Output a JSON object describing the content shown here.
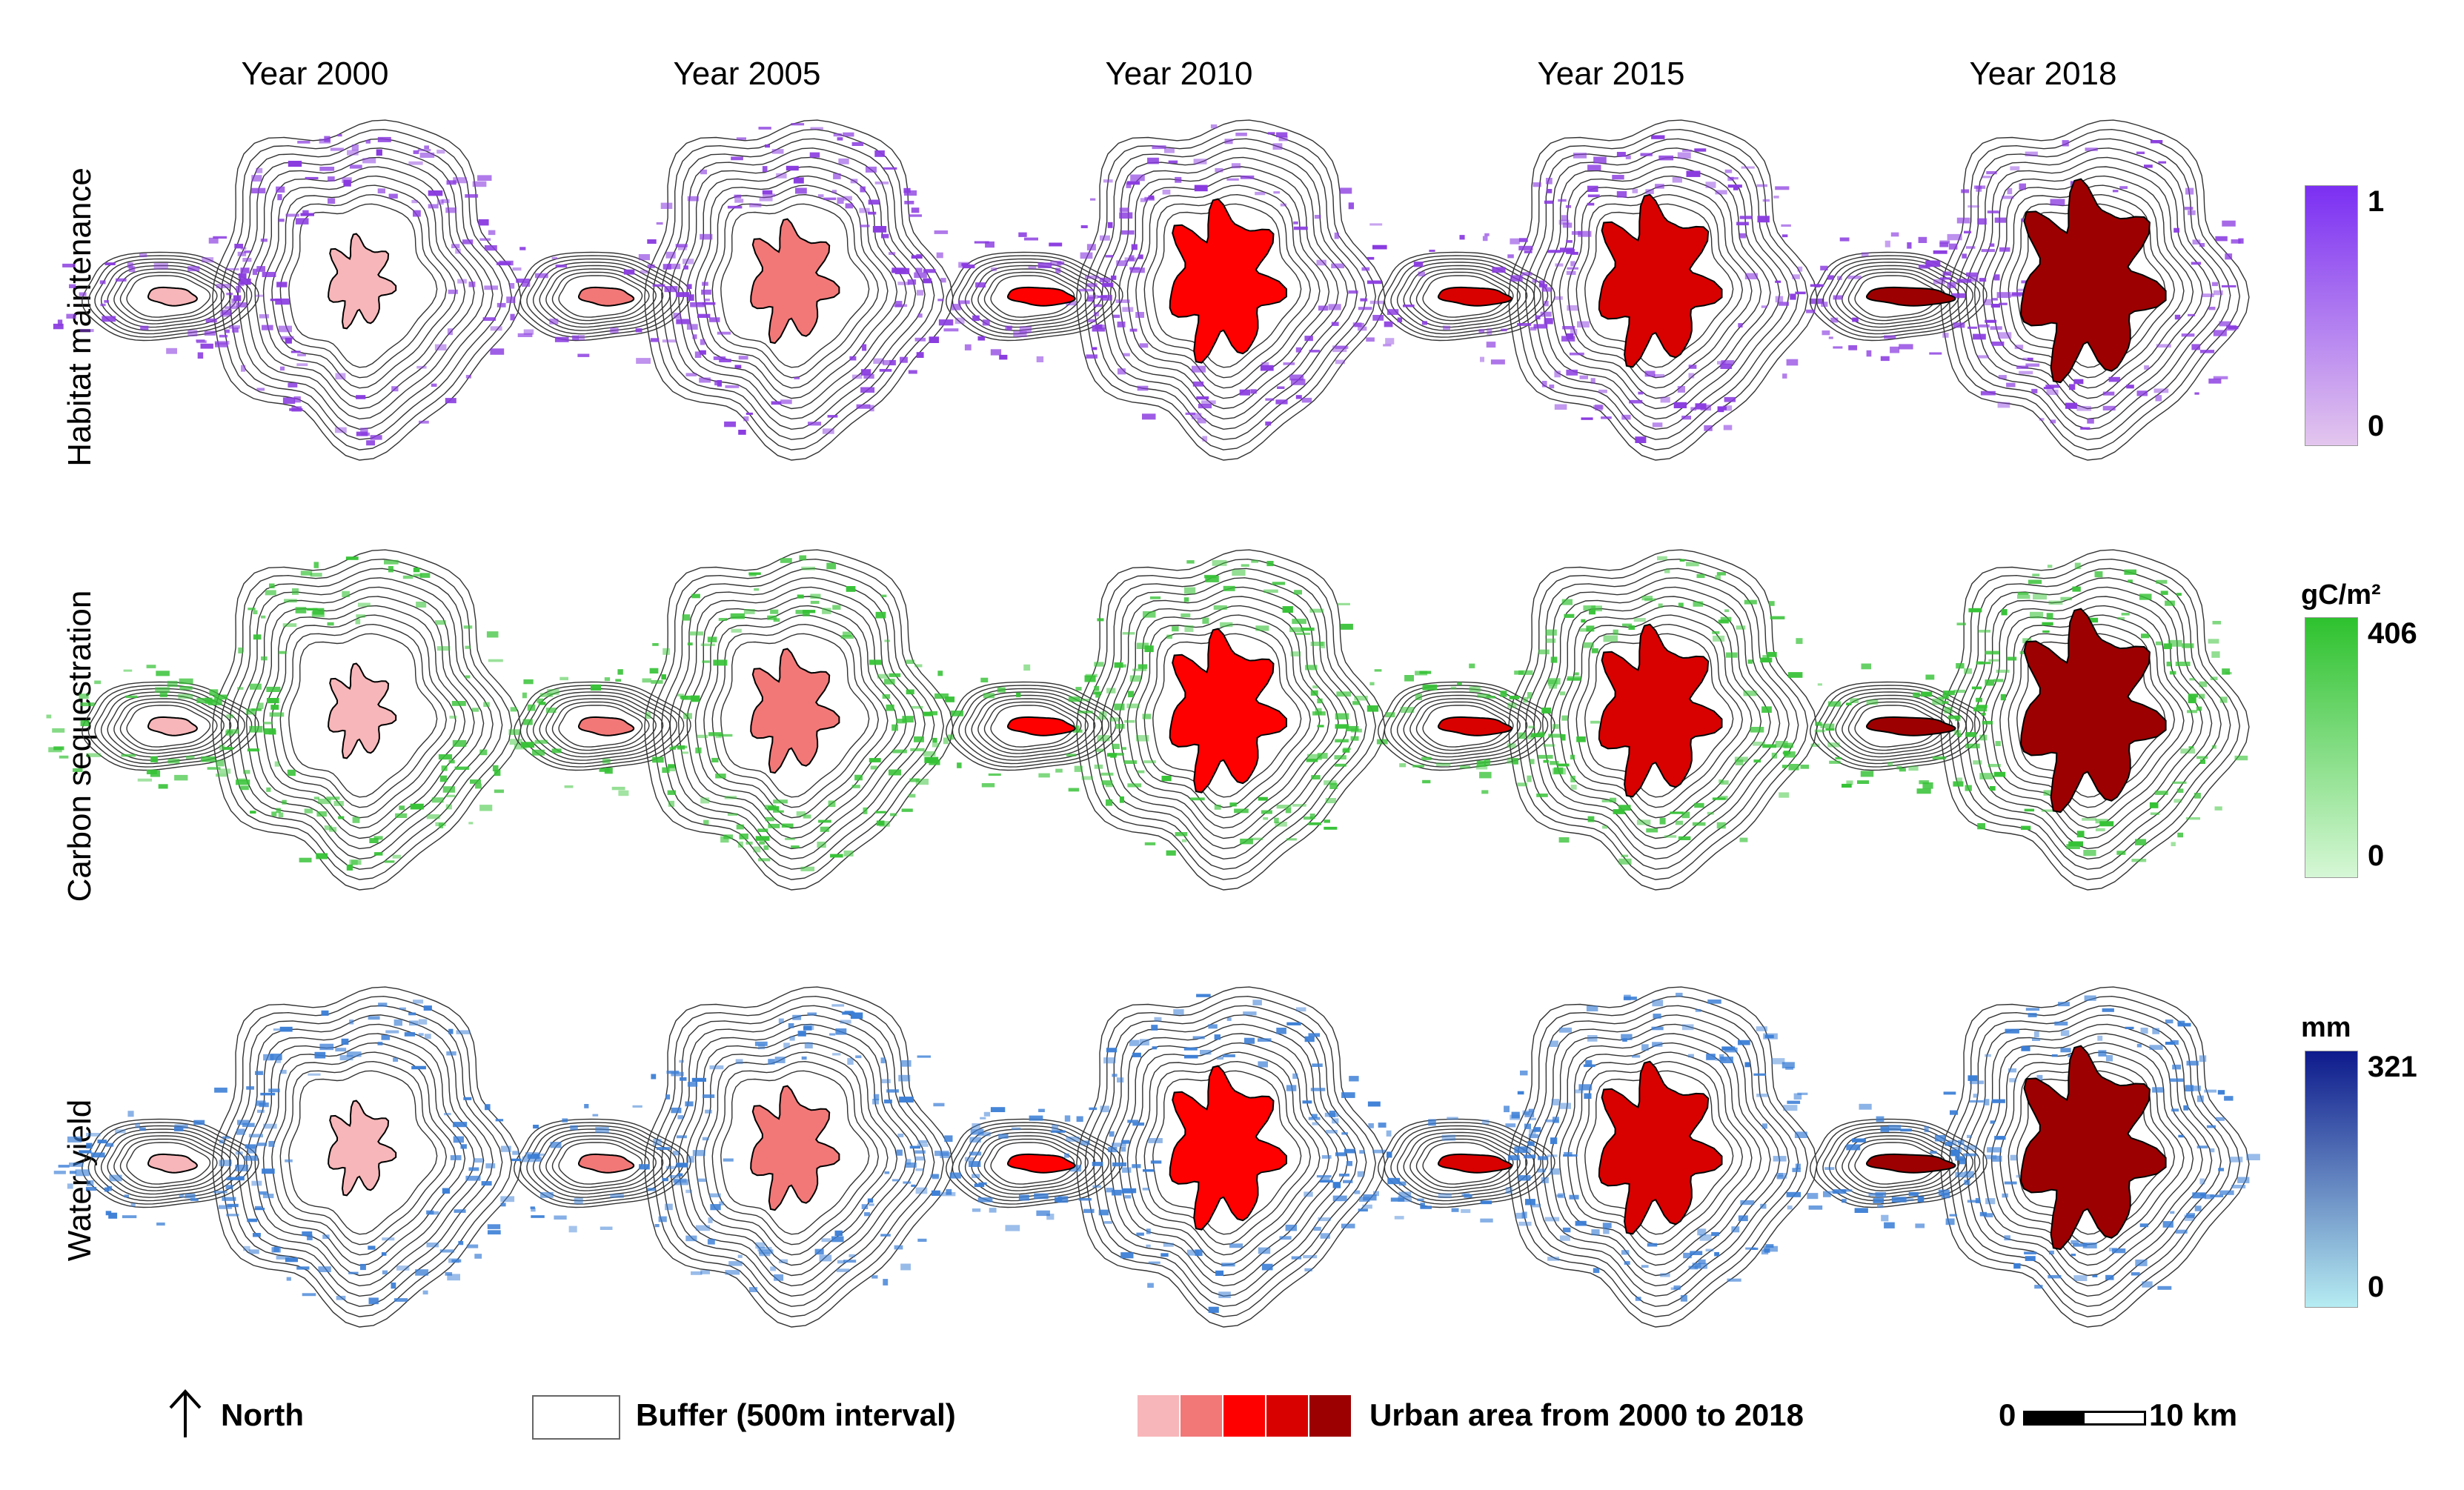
{
  "years": [
    "Year 2000",
    "Year 2005",
    "Year 2010",
    "Year 2015",
    "Year 2018"
  ],
  "rows": [
    {
      "label": "Habitat maintenance",
      "unit": "",
      "max": "1",
      "min": "0",
      "color_top": "#7b2ff2",
      "color_bottom": "#e3c6ee",
      "dot_color": "#8a3be0"
    },
    {
      "label": "Carbon sequestration",
      "unit": "gC/m²",
      "max": "406",
      "min": "0",
      "color_top": "#2ec22e",
      "color_bottom": "#d6f7d6",
      "dot_color": "#36c236"
    },
    {
      "label": "Water yield",
      "unit": "mm",
      "max": "321",
      "min": "0",
      "color_top": "#0d1a8c",
      "color_bottom": "#b6ecf2",
      "dot_color": "#3b7ed6"
    }
  ],
  "urban_colors": [
    "#f7b6b9",
    "#f27878",
    "#ff0000",
    "#d90000",
    "#9c0000"
  ],
  "legend": {
    "north": "North",
    "buffer": "Buffer (500m interval)",
    "urban": "Urban area from 2000 to 2018",
    "scale_start": "0",
    "scale_end": "10 km"
  }
}
